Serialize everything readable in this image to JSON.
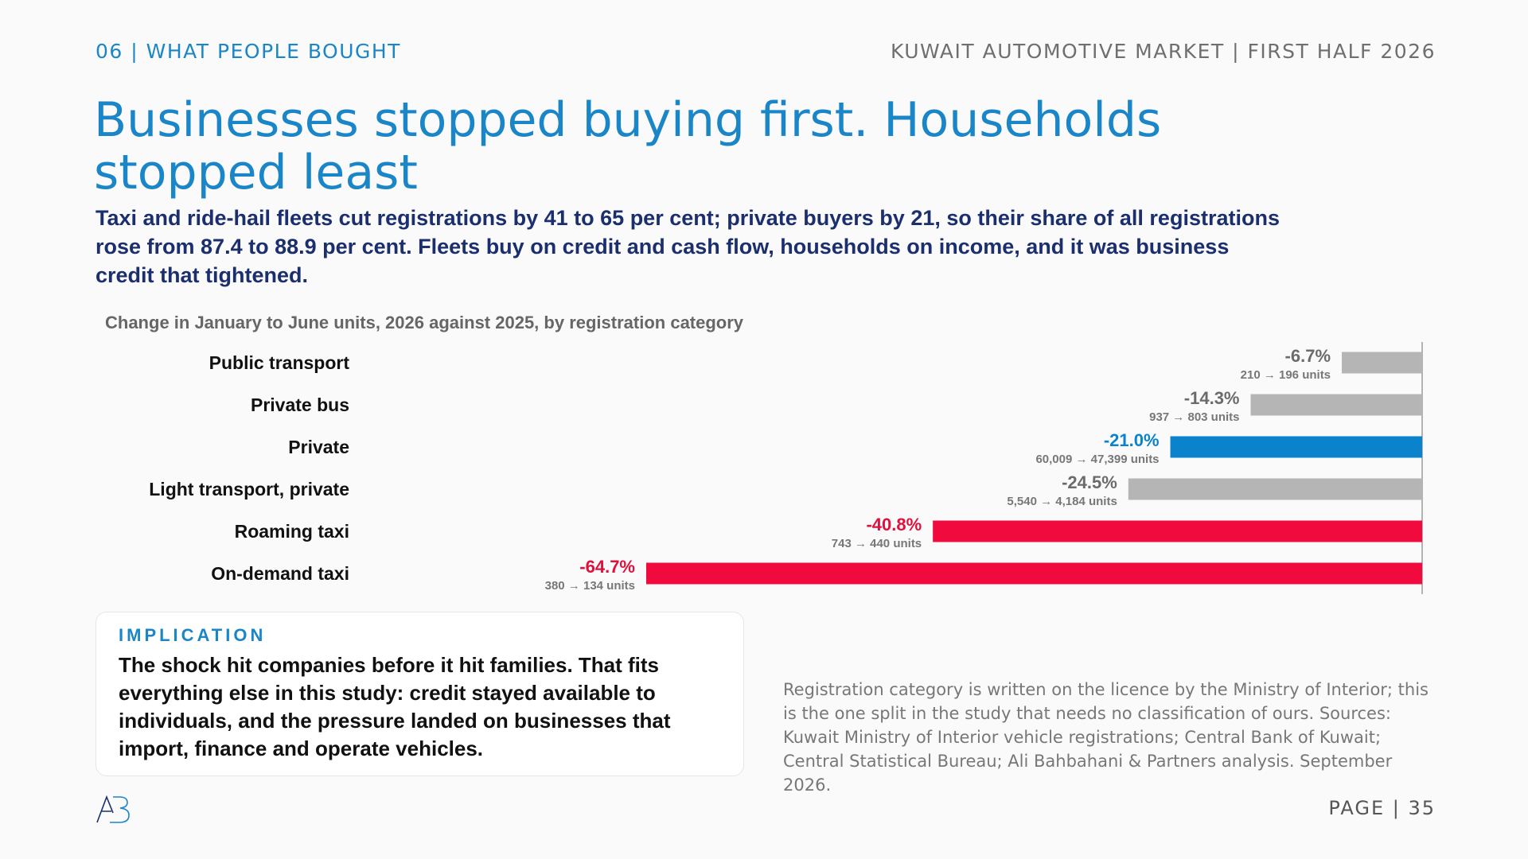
{
  "header": {
    "section": "06 | WHAT PEOPLE BOUGHT",
    "report": "KUWAIT AUTOMOTIVE MARKET | FIRST HALF 2026"
  },
  "headline": "Businesses stopped buying first. Households stopped least",
  "subhead": "Taxi and ride-hail fleets cut registrations by 41 to 65 per cent; private buyers by 21, so their share of all registrations rose from 87.4 to 88.9 per cent. Fleets buy on credit and cash flow, households on income, and it was business credit that tightened.",
  "chart_data": {
    "type": "bar",
    "orientation": "horizontal",
    "title": "Change in January to June units, 2026 against 2025, by registration category",
    "xlabel": "",
    "ylabel": "",
    "unit": "%",
    "xlim": [
      -64.7,
      0
    ],
    "categories": [
      "Public transport",
      "Private bus",
      "Private",
      "Light transport, private",
      "Roaming taxi",
      "On-demand taxi"
    ],
    "values": [
      -6.7,
      -14.3,
      -21.0,
      -24.5,
      -40.8,
      -64.7
    ],
    "value_labels": [
      "-6.7%",
      "-14.3%",
      "-21.0%",
      "-24.5%",
      "-40.8%",
      "-64.7%"
    ],
    "unit_labels": [
      "210 → 196 units",
      "937 → 803 units",
      "60,009 → 47,399 units",
      "5,540 → 4,184 units",
      "743 → 440 units",
      "380 → 134 units"
    ],
    "bar_colors": [
      "#b5b5b5",
      "#b5b5b5",
      "#0a83cc",
      "#b5b5b5",
      "#f00a3d",
      "#f00a3d"
    ],
    "label_colors": [
      "#6b6b6b",
      "#6b6b6b",
      "#0a83cc",
      "#6b6b6b",
      "#e0103d",
      "#e0103d"
    ],
    "grid": false,
    "legend": "none"
  },
  "implication": {
    "heading": "IMPLICATION",
    "text": "The shock hit companies before it hit families. That fits everything else in this study: credit stayed available to individuals, and the pressure landed on businesses that import, finance and operate vehicles."
  },
  "source_note": "Registration category is written on the licence by the Ministry of Interior; this is the one split in the study that needs no classification of ours. Sources: Kuwait Ministry of Interior vehicle registrations; Central Bank of Kuwait; Central Statistical Bureau; Ali Bahbahani & Partners analysis. September 2026.",
  "footer": {
    "logo_text": "AB",
    "page": "PAGE | 35"
  }
}
